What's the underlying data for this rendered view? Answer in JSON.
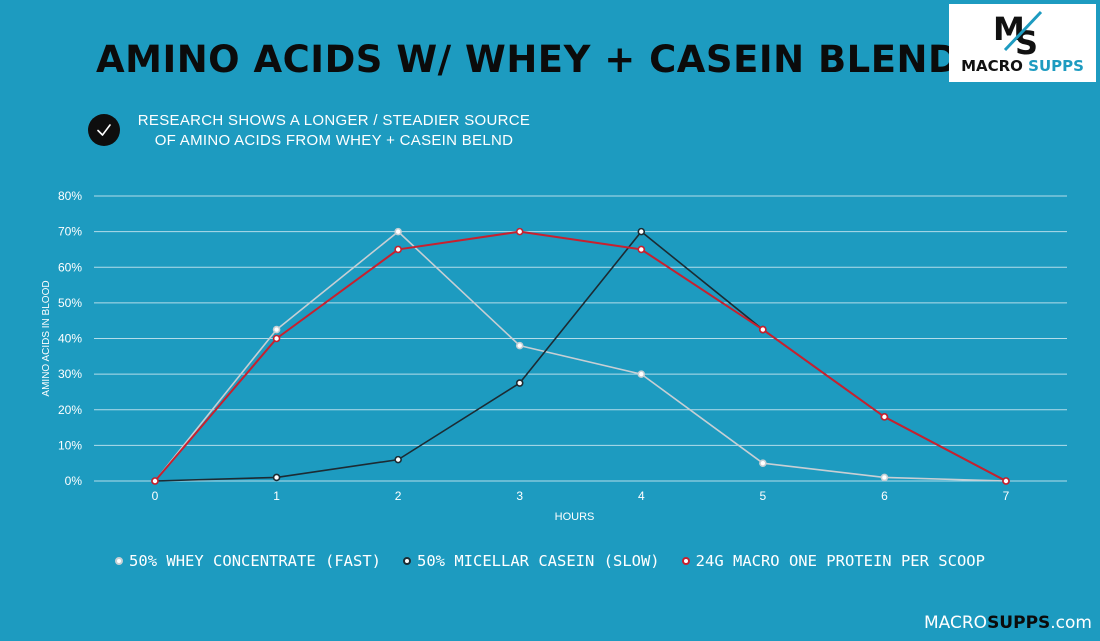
{
  "header": {
    "title": "AMINO ACIDS W/ WHEY + CASEIN BLEND"
  },
  "logo": {
    "mark": "MS",
    "name_part1": "MACRO",
    "name_part2": "SUPPS"
  },
  "research_note": {
    "icon": "check-icon",
    "line1": "RESEARCH SHOWS A LONGER / STEADIER SOURCE",
    "line2": "OF AMINO ACIDS FROM WHEY + CASEIN BELND"
  },
  "footer": {
    "part1": "MACRO",
    "part2": "SUPPS",
    "part3": ".com"
  },
  "chart_data": {
    "type": "line",
    "xlabel": "HOURS",
    "ylabel": "AMINO ACIDS IN BLOOD",
    "x": [
      0,
      1,
      2,
      3,
      4,
      5,
      6,
      7
    ],
    "xlim": [
      0,
      7
    ],
    "ylim": [
      0,
      80
    ],
    "yticks": [
      0,
      10,
      20,
      30,
      40,
      50,
      60,
      70,
      80
    ],
    "ytick_labels": [
      "0%",
      "10%",
      "20%",
      "30%",
      "40%",
      "50%",
      "60%",
      "70%",
      "80%"
    ],
    "grid": true,
    "legend_position": "bottom",
    "series": [
      {
        "name": "50% WHEY CONCENTRATE (FAST)",
        "color": "#c7cfd4",
        "values": [
          0,
          42.5,
          70,
          38,
          30,
          5,
          1,
          0
        ]
      },
      {
        "name": "50% MICELLAR CASEIN (SLOW)",
        "color": "#1c2b33",
        "values": [
          0,
          1,
          6,
          27.5,
          70,
          42.5,
          18,
          0
        ]
      },
      {
        "name": "24G MACRO ONE PROTEIN PER SCOOP",
        "color": "#c8202e",
        "values": [
          0,
          40,
          65,
          70,
          65,
          42.5,
          18,
          0
        ]
      }
    ]
  },
  "colors": {
    "background": "#1d9bc0",
    "grid": "#e6f3f8",
    "text": "#ffffff"
  }
}
